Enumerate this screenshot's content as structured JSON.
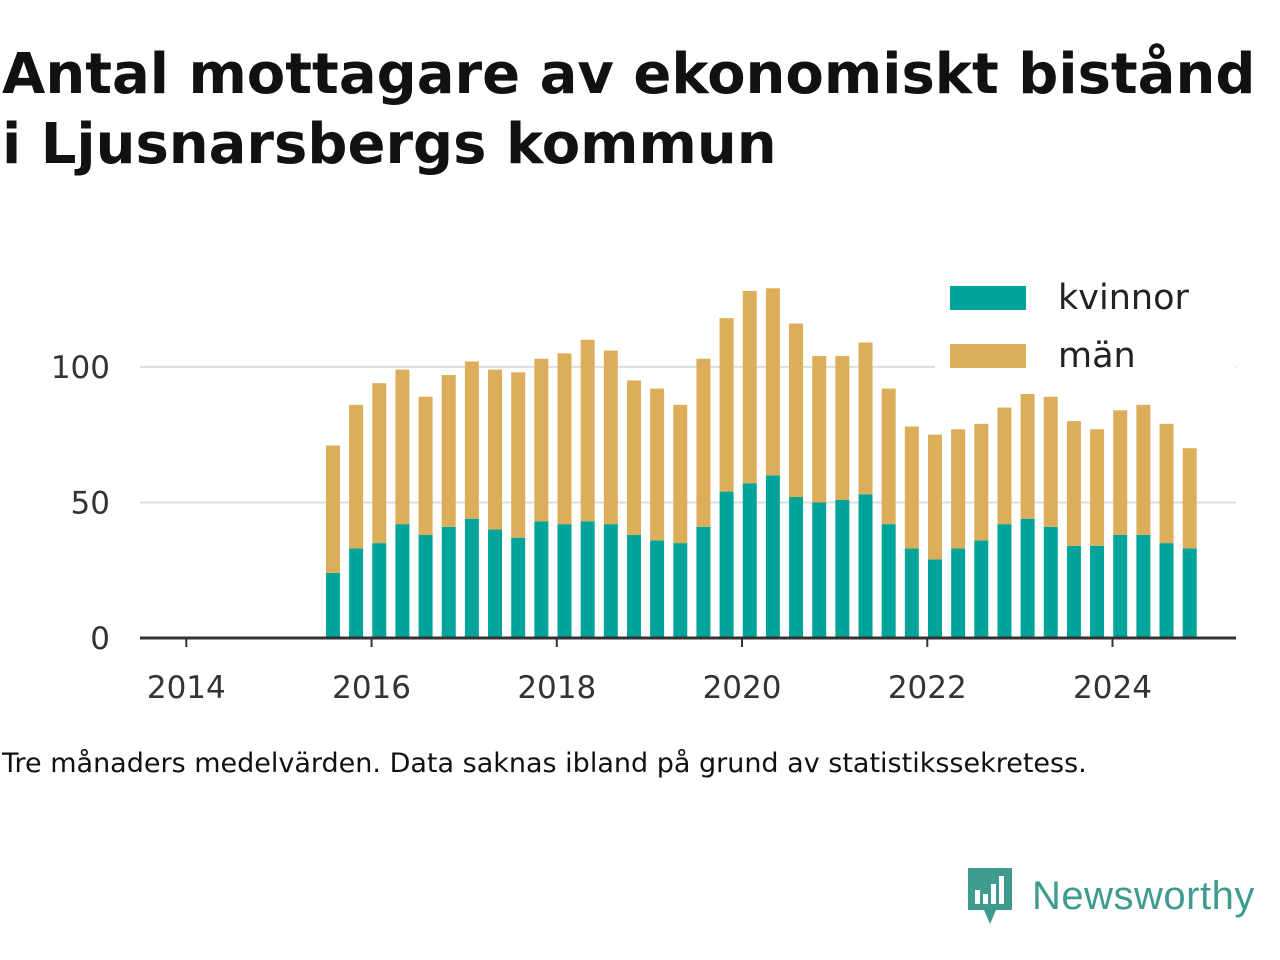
{
  "title": "Antal mottagare av ekonomiskt bistånd i Ljusnarsbergs kommun",
  "caption": "Tre månaders medelvärden. Data saknas ibland på grund av statistikssekretess.",
  "brand": {
    "name": "Newsworthy",
    "icon": "newsworthy-logo-icon",
    "color": "#3d9c8f"
  },
  "colors": {
    "kvinnor": "#00a49a",
    "man": "#dcae5a",
    "grid": "#dddddd",
    "axis": "#333333",
    "text": "#333333"
  },
  "chart_data": {
    "type": "bar",
    "stacked": true,
    "xlabel": "",
    "ylabel": "",
    "xlim": [
      "2013-07",
      "2025-05"
    ],
    "ylim": [
      0,
      135
    ],
    "x_ticks": [
      "2014",
      "2016",
      "2018",
      "2020",
      "2022",
      "2024"
    ],
    "y_ticks": [
      0,
      50,
      100
    ],
    "grid": "horizontal",
    "legend_position": "top-right",
    "x": [
      "2015-08",
      "2015-11",
      "2016-02",
      "2016-05",
      "2016-08",
      "2016-11",
      "2017-02",
      "2017-05",
      "2017-08",
      "2017-11",
      "2018-02",
      "2018-05",
      "2018-08",
      "2018-11",
      "2019-02",
      "2019-05",
      "2019-08",
      "2019-11",
      "2020-02",
      "2020-05",
      "2020-08",
      "2020-11",
      "2021-02",
      "2021-05",
      "2021-08",
      "2021-11",
      "2022-02",
      "2022-05",
      "2022-08",
      "2022-11",
      "2023-02",
      "2023-05",
      "2023-08",
      "2023-11",
      "2024-02",
      "2024-05",
      "2024-08",
      "2024-11"
    ],
    "series": [
      {
        "name": "kvinnor",
        "color": "#00a49a",
        "values": [
          24,
          33,
          35,
          42,
          38,
          41,
          44,
          40,
          37,
          43,
          42,
          43,
          42,
          38,
          36,
          35,
          41,
          54,
          57,
          60,
          52,
          50,
          51,
          53,
          42,
          33,
          29,
          33,
          36,
          42,
          44,
          41,
          34,
          34,
          38,
          38,
          35,
          33
        ]
      },
      {
        "name": "män",
        "color": "#dcae5a",
        "values": [
          47,
          53,
          59,
          57,
          51,
          56,
          58,
          59,
          61,
          60,
          63,
          67,
          64,
          57,
          56,
          51,
          62,
          64,
          71,
          69,
          64,
          54,
          53,
          56,
          50,
          45,
          46,
          44,
          43,
          43,
          46,
          48,
          46,
          43,
          46,
          48,
          44,
          37
        ]
      }
    ]
  }
}
